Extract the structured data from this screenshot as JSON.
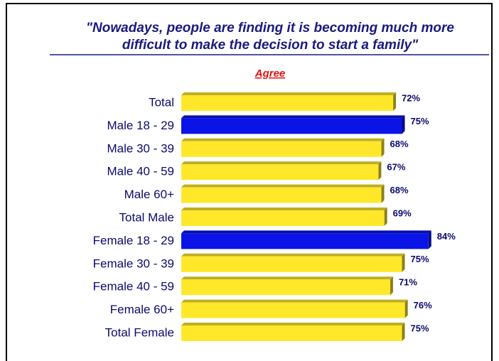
{
  "chart_data": {
    "type": "bar",
    "orientation": "horizontal",
    "title": "\"Nowadays, people are finding it is becoming much more difficult to make the decision to start a family\"",
    "title_lines": [
      "\"Nowadays, people are finding it is becoming much more",
      "difficult to make the decision to start a family\""
    ],
    "subtitle": "Agree",
    "categories": [
      "Total",
      "Male 18 - 29",
      "Male 30 - 39",
      "Male 40 - 59",
      "Male 60+",
      "Total Male",
      "Female 18 - 29",
      "Female 30 - 39",
      "Female 40 - 59",
      "Female 60+",
      "Total Female"
    ],
    "values": [
      72,
      75,
      68,
      67,
      68,
      69,
      84,
      75,
      71,
      76,
      75
    ],
    "value_labels": [
      "72%",
      "75%",
      "68%",
      "67%",
      "68%",
      "69%",
      "84%",
      "75%",
      "71%",
      "76%",
      "75%"
    ],
    "colors": [
      "#ffe82a",
      "#0a14e6",
      "#ffe82a",
      "#ffe82a",
      "#ffe82a",
      "#ffe82a",
      "#0a14e6",
      "#ffe82a",
      "#ffe82a",
      "#ffe82a",
      "#ffe82a"
    ],
    "xlim": [
      0,
      100
    ]
  }
}
